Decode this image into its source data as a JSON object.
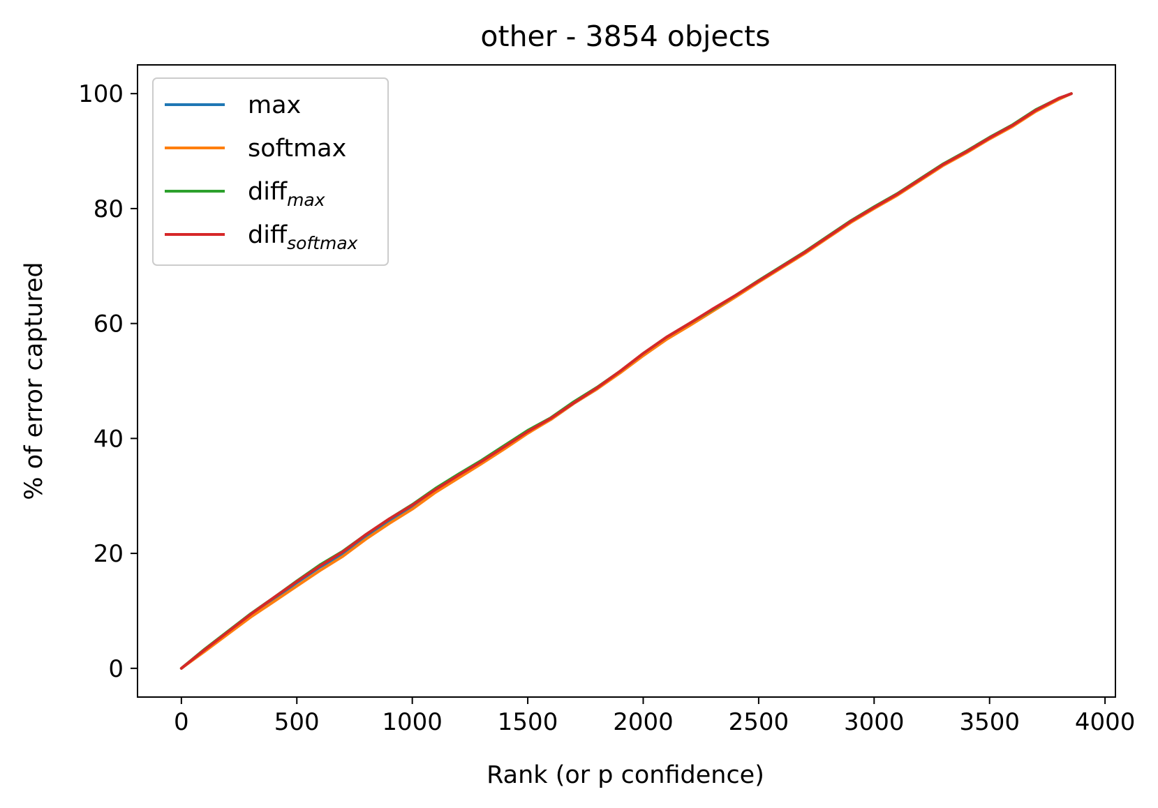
{
  "chart_data": {
    "type": "line",
    "title": "other - 3854 objects",
    "xlabel": "Rank (or p confidence)",
    "ylabel": "% of error captured",
    "xlim": [
      -190,
      4045
    ],
    "ylim": [
      -5,
      105
    ],
    "xticks": [
      0,
      500,
      1000,
      1500,
      2000,
      2500,
      3000,
      3500,
      4000
    ],
    "yticks": [
      0,
      20,
      40,
      60,
      80,
      100
    ],
    "grid": false,
    "legend_position": "top-left",
    "series": [
      {
        "name": "max",
        "color": "#1f77b4",
        "x": [
          0,
          100,
          200,
          300,
          400,
          500,
          600,
          700,
          800,
          900,
          1000,
          1100,
          1200,
          1300,
          1400,
          1500,
          1600,
          1700,
          1800,
          1900,
          2000,
          2100,
          2200,
          2300,
          2400,
          2500,
          2600,
          2700,
          2800,
          2900,
          3000,
          3100,
          3200,
          3300,
          3400,
          3500,
          3600,
          3700,
          3800,
          3854
        ],
        "y": [
          0,
          3.2,
          6.2,
          9.3,
          12.1,
          14.9,
          17.6,
          19.9,
          22.9,
          25.6,
          28.1,
          30.9,
          33.4,
          35.8,
          38.4,
          41.0,
          43.3,
          46.1,
          48.6,
          51.5,
          54.6,
          57.4,
          59.8,
          62.2,
          64.7,
          67.3,
          69.8,
          72.3,
          75.0,
          77.7,
          80.1,
          82.4,
          85.0,
          87.6,
          89.8,
          92.2,
          94.4,
          97.0,
          99.1,
          100
        ]
      },
      {
        "name": "softmax",
        "color": "#ff7f0e",
        "x": [
          0,
          100,
          200,
          300,
          400,
          500,
          600,
          700,
          800,
          900,
          1000,
          1100,
          1200,
          1300,
          1400,
          1500,
          1600,
          1700,
          1800,
          1900,
          2000,
          2100,
          2200,
          2300,
          2400,
          2500,
          2600,
          2700,
          2800,
          2900,
          3000,
          3100,
          3200,
          3300,
          3400,
          3500,
          3600,
          3700,
          3800,
          3854
        ],
        "y": [
          0,
          2.9,
          5.9,
          8.9,
          11.6,
          14.3,
          17.0,
          19.5,
          22.5,
          25.2,
          27.7,
          30.6,
          33.1,
          35.6,
          38.2,
          40.9,
          43.3,
          46.1,
          48.6,
          51.4,
          54.4,
          57.2,
          59.6,
          62.1,
          64.6,
          67.2,
          69.7,
          72.2,
          74.9,
          77.6,
          80.0,
          82.3,
          84.9,
          87.5,
          89.7,
          92.1,
          94.3,
          96.9,
          99.0,
          100
        ]
      },
      {
        "name": "diff",
        "name_subscript": "max",
        "color": "#2ca02c",
        "x": [
          0,
          100,
          200,
          300,
          400,
          500,
          600,
          700,
          800,
          900,
          1000,
          1100,
          1200,
          1300,
          1400,
          1500,
          1600,
          1700,
          1800,
          1900,
          2000,
          2100,
          2200,
          2300,
          2400,
          2500,
          2600,
          2700,
          2800,
          2900,
          3000,
          3100,
          3200,
          3300,
          3400,
          3500,
          3600,
          3700,
          3800,
          3854
        ],
        "y": [
          0,
          3.3,
          6.4,
          9.5,
          12.3,
          15.2,
          18.0,
          20.4,
          23.3,
          26.0,
          28.5,
          31.3,
          33.8,
          36.2,
          38.8,
          41.4,
          43.6,
          46.4,
          48.9,
          51.7,
          54.8,
          57.6,
          60.0,
          62.4,
          64.9,
          67.5,
          70.0,
          72.5,
          75.2,
          77.9,
          80.3,
          82.6,
          85.2,
          87.8,
          90.0,
          92.4,
          94.6,
          97.2,
          99.2,
          100
        ]
      },
      {
        "name": "diff",
        "name_subscript": "softmax",
        "color": "#d62728",
        "x": [
          0,
          100,
          200,
          300,
          400,
          500,
          600,
          700,
          800,
          900,
          1000,
          1100,
          1200,
          1300,
          1400,
          1500,
          1600,
          1700,
          1800,
          1900,
          2000,
          2100,
          2200,
          2300,
          2400,
          2500,
          2600,
          2700,
          2800,
          2900,
          3000,
          3100,
          3200,
          3300,
          3400,
          3500,
          3600,
          3700,
          3800,
          3854
        ],
        "y": [
          0,
          3.2,
          6.3,
          9.4,
          12.3,
          15.1,
          17.8,
          20.3,
          23.3,
          26.0,
          28.4,
          31.1,
          33.6,
          36.0,
          38.6,
          41.2,
          43.5,
          46.2,
          48.8,
          51.7,
          54.8,
          57.6,
          60.0,
          62.5,
          64.9,
          67.4,
          69.9,
          72.4,
          75.1,
          77.8,
          80.2,
          82.5,
          85.1,
          87.7,
          89.9,
          92.3,
          94.5,
          97.1,
          99.2,
          100
        ]
      }
    ]
  }
}
